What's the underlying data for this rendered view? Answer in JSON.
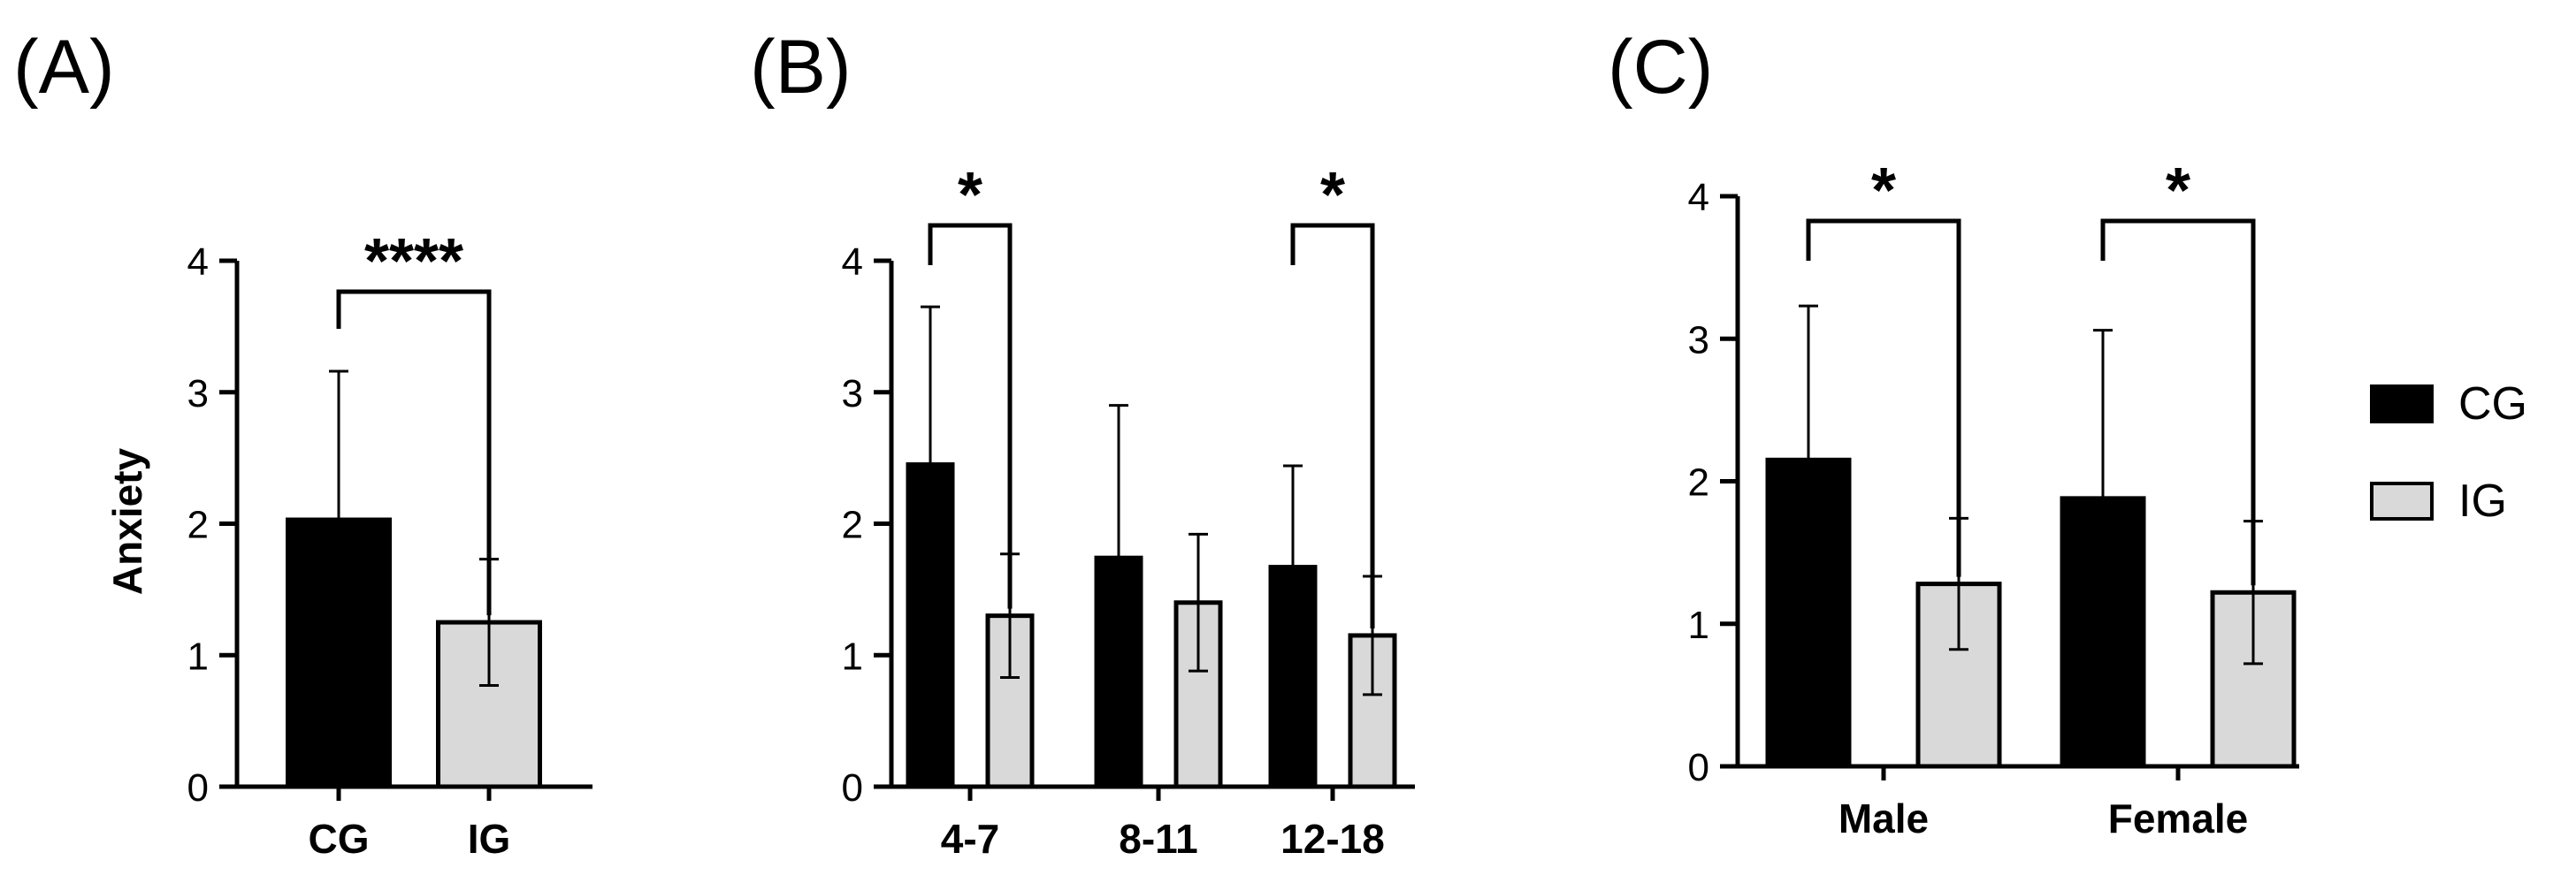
{
  "colors": {
    "CG": "#000000",
    "IG": "#d9d9d9",
    "stroke": "#000000"
  },
  "legend": {
    "placement": "right",
    "items": [
      {
        "label": "CG",
        "color": "#000000"
      },
      {
        "label": "IG",
        "color": "#d9d9d9"
      }
    ]
  },
  "chart_data": [
    {
      "panel": "(A)",
      "type": "bar",
      "ylabel": "Anxiety",
      "ylim": [
        0,
        4
      ],
      "yticks": [
        "0",
        "1",
        "2",
        "3",
        "4"
      ],
      "categories": [
        "CG",
        "IG"
      ],
      "values": [
        2.03,
        1.25
      ],
      "errors": [
        1.13,
        0.48
      ],
      "colors": [
        "#000000",
        "#d9d9d9"
      ],
      "significance": [
        {
          "from": 0,
          "to": 1,
          "text": "****"
        }
      ]
    },
    {
      "panel": "(B)",
      "type": "bar",
      "ylabel": "",
      "ylim": [
        0,
        4
      ],
      "yticks": [
        "0",
        "1",
        "2",
        "3",
        "4"
      ],
      "categories": [
        "4-7",
        "8-11",
        "12-18"
      ],
      "series": [
        {
          "name": "CG",
          "values": [
            2.45,
            1.74,
            1.67
          ],
          "errors": [
            1.2,
            1.16,
            0.77
          ]
        },
        {
          "name": "IG",
          "values": [
            1.3,
            1.4,
            1.15
          ],
          "errors": [
            0.47,
            0.52,
            0.45
          ]
        }
      ],
      "significance": [
        {
          "category": 0,
          "text": "*"
        },
        {
          "category": 2,
          "text": "*"
        }
      ]
    },
    {
      "panel": "(C)",
      "type": "bar",
      "ylabel": "",
      "ylim": [
        0,
        4
      ],
      "yticks": [
        "0",
        "1",
        "2",
        "3",
        "4"
      ],
      "categories": [
        "Male",
        "Female"
      ],
      "series": [
        {
          "name": "CG",
          "values": [
            2.15,
            1.88
          ],
          "errors": [
            1.08,
            1.18
          ]
        },
        {
          "name": "IG",
          "values": [
            1.28,
            1.22
          ],
          "errors": [
            0.46,
            0.5
          ]
        }
      ],
      "significance": [
        {
          "category": 0,
          "text": "*"
        },
        {
          "category": 1,
          "text": "*"
        }
      ]
    }
  ]
}
